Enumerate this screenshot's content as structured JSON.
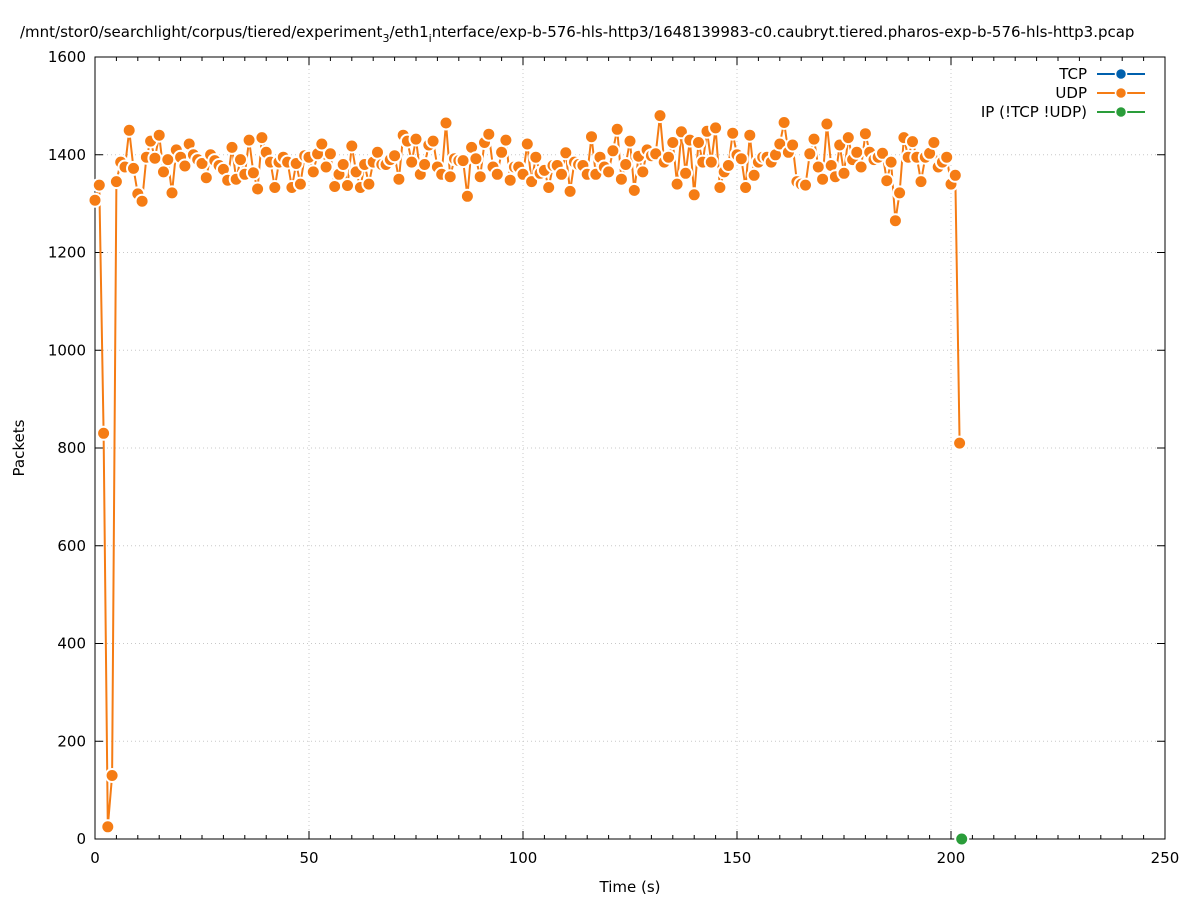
{
  "chart_data": {
    "type": "line",
    "title_main": "/mnt/stor0/searchlight/corpus/tiered/experiment",
    "title_sub1": "3",
    "title_mid": "/eth1",
    "title_sub2": "i",
    "title_end": "nterface/exp-b-576-hls-http3/1648139983-c0.caubryt.tiered.pharos-exp-b-576-hls-http3.pcap",
    "xlabel": "Time (s)",
    "ylabel": "Packets",
    "xlim": [
      0,
      250
    ],
    "ylim": [
      0,
      1600
    ],
    "x_ticks": [
      0,
      50,
      100,
      150,
      200,
      250
    ],
    "y_ticks": [
      0,
      200,
      400,
      600,
      800,
      1000,
      1200,
      1400,
      1600
    ],
    "grid": true,
    "legend_position": "top-right",
    "series": [
      {
        "name": "TCP",
        "color": "#0060ad",
        "x": [],
        "y": []
      },
      {
        "name": "UDP",
        "color": "#f57c14",
        "x": [
          0,
          1,
          2,
          3,
          4,
          5,
          6,
          7,
          8,
          9,
          10,
          11,
          12,
          13,
          14,
          15,
          16,
          17,
          18,
          19,
          20,
          21,
          22,
          23,
          24,
          25,
          26,
          27,
          28,
          29,
          30,
          31,
          32,
          33,
          34,
          35,
          36,
          37,
          38,
          39,
          40,
          41,
          42,
          43,
          44,
          45,
          46,
          47,
          48,
          49,
          50,
          51,
          52,
          53,
          54,
          55,
          56,
          57,
          58,
          59,
          60,
          61,
          62,
          63,
          64,
          65,
          66,
          67,
          68,
          69,
          70,
          71,
          72,
          73,
          74,
          75,
          76,
          77,
          78,
          79,
          80,
          81,
          82,
          83,
          84,
          85,
          86,
          87,
          88,
          89,
          90,
          91,
          92,
          93,
          94,
          95,
          96,
          97,
          98,
          99,
          100,
          101,
          102,
          103,
          104,
          105,
          106,
          107,
          108,
          109,
          110,
          111,
          112,
          113,
          114,
          115,
          116,
          117,
          118,
          119,
          120,
          121,
          122,
          123,
          124,
          125,
          126,
          127,
          128,
          129,
          130,
          131,
          132,
          133,
          134,
          135,
          136,
          137,
          138,
          139,
          140,
          141,
          142,
          143,
          144,
          145,
          146,
          147,
          148,
          149,
          150,
          151,
          152,
          153,
          154,
          155,
          156,
          157,
          158,
          159,
          160,
          161,
          162,
          163,
          164,
          165,
          166,
          167,
          168,
          169,
          170,
          171,
          172,
          173,
          174,
          175,
          176,
          177,
          178,
          179,
          180,
          181,
          182,
          183,
          184,
          185,
          186,
          187,
          188,
          189,
          190,
          191,
          192,
          193,
          194,
          195,
          196,
          197,
          198,
          199,
          200,
          201,
          202
        ],
        "y": [
          1307,
          1338,
          830,
          25,
          130,
          1345,
          1385,
          1375,
          1450,
          1372,
          1320,
          1305,
          1395,
          1428,
          1393,
          1440,
          1365,
          1390,
          1322,
          1410,
          1395,
          1377,
          1422,
          1400,
          1390,
          1382,
          1353,
          1400,
          1388,
          1378,
          1370,
          1348,
          1415,
          1350,
          1390,
          1360,
          1430,
          1363,
          1330,
          1435,
          1405,
          1385,
          1333,
          1385,
          1395,
          1385,
          1333,
          1382,
          1340,
          1398,
          1395,
          1365,
          1402,
          1422,
          1375,
          1402,
          1335,
          1360,
          1380,
          1337,
          1418,
          1365,
          1333,
          1380,
          1340,
          1385,
          1405,
          1380,
          1380,
          1390,
          1398,
          1350,
          1440,
          1428,
          1385,
          1432,
          1360,
          1380,
          1420,
          1428,
          1375,
          1360,
          1465,
          1355,
          1392,
          1388,
          1388,
          1315,
          1415,
          1392,
          1355,
          1425,
          1442,
          1375,
          1360,
          1405,
          1430,
          1348,
          1375,
          1375,
          1360,
          1422,
          1345,
          1395,
          1362,
          1368,
          1333,
          1378,
          1378,
          1360,
          1404,
          1325,
          1385,
          1380,
          1378,
          1360,
          1437,
          1360,
          1395,
          1375,
          1365,
          1408,
          1452,
          1350,
          1380,
          1428,
          1327,
          1397,
          1365,
          1410,
          1398,
          1402,
          1480,
          1385,
          1395,
          1425,
          1340,
          1447,
          1362,
          1430,
          1318,
          1425,
          1385,
          1448,
          1385,
          1455,
          1333,
          1365,
          1378,
          1444,
          1400,
          1392,
          1333,
          1440,
          1358,
          1385,
          1395,
          1395,
          1385,
          1400,
          1422,
          1466,
          1405,
          1420,
          1345,
          1340,
          1338,
          1402,
          1432,
          1375,
          1350,
          1463,
          1378,
          1355,
          1420,
          1362,
          1435,
          1390,
          1405,
          1375,
          1443,
          1405,
          1390,
          1395,
          1403,
          1347,
          1385,
          1265,
          1322,
          1435,
          1395,
          1427,
          1395,
          1345,
          1395,
          1403,
          1425,
          1375,
          1385,
          1395,
          1340,
          1358,
          810
        ]
      },
      {
        "name": "IP (!TCP  !UDP)",
        "color": "#2a9d3a",
        "x": [
          202.5
        ],
        "y": [
          0
        ]
      }
    ]
  }
}
